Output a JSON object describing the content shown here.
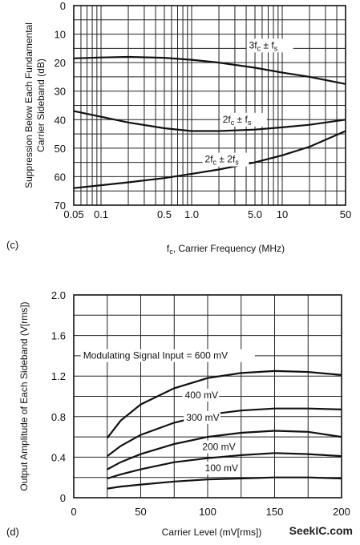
{
  "chart_data": [
    {
      "type": "line",
      "panel_label": "(c)",
      "xlabel": {
        "main": "f",
        "sub": "c",
        "rest": ", Carrier Frequency (MHz)"
      },
      "ylabel_lines": [
        "Suppression Below Each Fundamental",
        "Carrier Sideband (dB)"
      ],
      "x_scale": "log",
      "xlim": [
        0.05,
        50
      ],
      "ylim": [
        0,
        70
      ],
      "y_inverted": true,
      "x_ticks": [
        {
          "v": 0.05,
          "label": "0.05"
        },
        {
          "v": 0.1,
          "label": "0.1"
        },
        {
          "v": 0.5,
          "label": "0.5"
        },
        {
          "v": 1,
          "label": "1.0"
        },
        {
          "v": 5,
          "label": "5.0"
        },
        {
          "v": 10,
          "label": "10"
        },
        {
          "v": 50,
          "label": "50"
        }
      ],
      "y_ticks": [
        {
          "v": 0,
          "label": "0"
        },
        {
          "v": 10,
          "label": "10"
        },
        {
          "v": 20,
          "label": "20"
        },
        {
          "v": 30,
          "label": "30"
        },
        {
          "v": 40,
          "label": "40"
        },
        {
          "v": 50,
          "label": "50"
        },
        {
          "v": 60,
          "label": "60"
        },
        {
          "v": 70,
          "label": "70"
        }
      ],
      "series": [
        {
          "label_parts": [
            [
              "3f",
              ""
            ],
            [
              "c",
              "sub"
            ],
            [
              " ± f",
              ""
            ],
            [
              "s",
              "sub"
            ]
          ],
          "label_at": [
            4.3,
            15
          ],
          "x": [
            0.05,
            0.1,
            0.2,
            0.5,
            1,
            2,
            5,
            10,
            20,
            50
          ],
          "y": [
            18.5,
            18.2,
            18.0,
            18.3,
            19.0,
            20.0,
            21.8,
            23.5,
            25.0,
            27.5
          ]
        },
        {
          "label_parts": [
            [
              "2f",
              ""
            ],
            [
              "c",
              "sub"
            ],
            [
              " ± f",
              ""
            ],
            [
              "s",
              "sub"
            ]
          ],
          "label_at": [
            2.2,
            41
          ],
          "x": [
            0.05,
            0.1,
            0.2,
            0.5,
            1,
            2,
            5,
            10,
            20,
            50
          ],
          "y": [
            37.0,
            39.0,
            41.0,
            43.0,
            44.0,
            44.0,
            43.5,
            42.7,
            41.8,
            40.0
          ]
        },
        {
          "label_parts": [
            [
              "2f",
              ""
            ],
            [
              "c",
              "sub"
            ],
            [
              " ± 2f",
              ""
            ],
            [
              "s",
              "sub"
            ]
          ],
          "label_at": [
            1.4,
            55
          ],
          "x": [
            0.05,
            0.1,
            0.2,
            0.5,
            1,
            2,
            5,
            10,
            20,
            50
          ],
          "y": [
            64.0,
            63.0,
            62.0,
            60.5,
            59.0,
            57.5,
            55.0,
            52.5,
            49.5,
            44.0
          ]
        }
      ]
    },
    {
      "type": "line",
      "panel_label": "(d)",
      "xlabel": "Carrier Level (mV[rms])",
      "ylabel": "Output Amplitude of Each Sideband (V[rms])",
      "x_scale": "linear",
      "xlim": [
        0,
        200
      ],
      "ylim": [
        0,
        2.0
      ],
      "x_ticks": [
        {
          "v": 0,
          "label": "0"
        },
        {
          "v": 50,
          "label": "50"
        },
        {
          "v": 100,
          "label": "100"
        },
        {
          "v": 150,
          "label": "150"
        },
        {
          "v": 200,
          "label": "200"
        }
      ],
      "y_ticks": [
        {
          "v": 0,
          "label": "0"
        },
        {
          "v": 0.4,
          "label": "0.4"
        },
        {
          "v": 0.8,
          "label": "0.8"
        },
        {
          "v": 1.2,
          "label": "1.2"
        },
        {
          "v": 1.6,
          "label": "1.6"
        },
        {
          "v": 2.0,
          "label": "2.0"
        }
      ],
      "series": [
        {
          "label": "Modulating Signal Input = 600 mV",
          "label_at": [
            7,
            1.37
          ],
          "x": [
            25,
            35,
            50,
            75,
            100,
            125,
            150,
            175,
            200
          ],
          "y": [
            0.59,
            0.76,
            0.92,
            1.08,
            1.18,
            1.23,
            1.25,
            1.24,
            1.21
          ]
        },
        {
          "label": "400 mV",
          "label_at": [
            83,
            0.98
          ],
          "x": [
            25,
            35,
            50,
            75,
            100,
            125,
            150,
            175,
            200
          ],
          "y": [
            0.41,
            0.51,
            0.62,
            0.74,
            0.82,
            0.86,
            0.88,
            0.88,
            0.87
          ]
        },
        {
          "label": "300 mV",
          "label_at": [
            84,
            0.76
          ],
          "x": [
            25,
            35,
            50,
            75,
            100,
            125,
            150,
            175,
            200
          ],
          "y": [
            0.28,
            0.35,
            0.43,
            0.53,
            0.6,
            0.64,
            0.66,
            0.65,
            0.6
          ]
        },
        {
          "label": "200 mV",
          "label_at": [
            96,
            0.47
          ],
          "x": [
            25,
            35,
            50,
            75,
            100,
            125,
            150,
            175,
            200
          ],
          "y": [
            0.19,
            0.23,
            0.28,
            0.35,
            0.39,
            0.42,
            0.44,
            0.43,
            0.41
          ]
        },
        {
          "label": "100 mV",
          "label_at": [
            98,
            0.26
          ],
          "x": [
            25,
            35,
            50,
            75,
            100,
            125,
            150,
            175,
            200
          ],
          "y": [
            0.09,
            0.11,
            0.13,
            0.16,
            0.18,
            0.19,
            0.2,
            0.2,
            0.19
          ]
        }
      ]
    }
  ],
  "watermark": "SeekIC.com"
}
